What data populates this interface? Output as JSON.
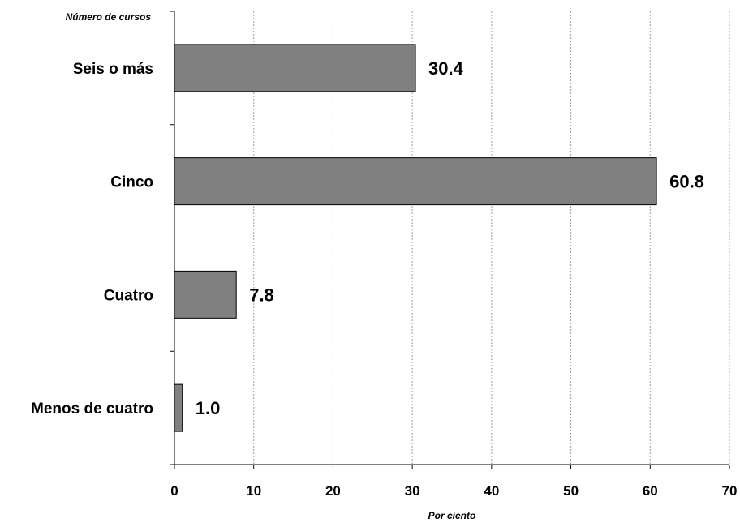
{
  "chart_data": {
    "type": "bar",
    "orientation": "horizontal",
    "ylabel": "Número de cursos",
    "xlabel": "Por ciento",
    "categories": [
      "Seis o más",
      "Cinco",
      "Cuatro",
      "Menos de cuatro"
    ],
    "values": [
      30.4,
      60.8,
      7.8,
      1.0
    ],
    "value_labels": [
      "30.4",
      "60.8",
      "7.8",
      "1.0"
    ],
    "xlim": [
      0,
      70
    ],
    "x_ticks": [
      0,
      10,
      20,
      30,
      40,
      50,
      60,
      70
    ],
    "grid": "vertical-dotted",
    "legend": "none",
    "colors": {
      "bar": "#808080",
      "bar_border": "#000000",
      "grid": "#a0a0a0",
      "axis": "#000000"
    }
  }
}
